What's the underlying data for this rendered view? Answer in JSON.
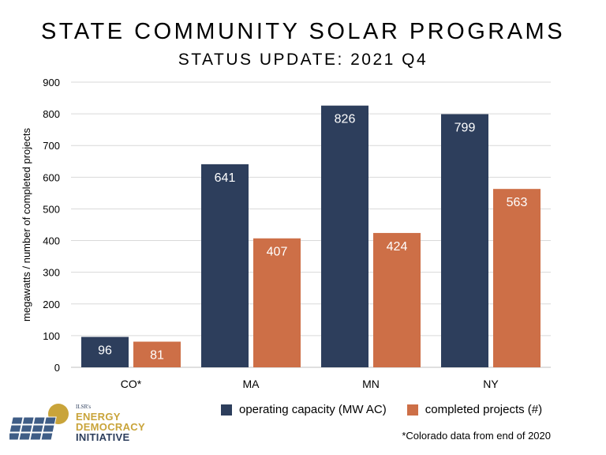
{
  "header": {
    "title": "STATE COMMUNITY SOLAR PROGRAMS",
    "subtitle": "STATUS UPDATE: 2021 Q4"
  },
  "chart_data": {
    "type": "bar",
    "title": "STATE COMMUNITY SOLAR PROGRAMS",
    "subtitle": "STATUS UPDATE: 2021 Q4",
    "categories": [
      "CO*",
      "MA",
      "MN",
      "NY"
    ],
    "series": [
      {
        "name": "operating capacity (MW AC)",
        "values": [
          96,
          641,
          826,
          799
        ],
        "color": "#2d3e5c"
      },
      {
        "name": "completed projects (#)",
        "values": [
          81,
          407,
          424,
          563
        ],
        "color": "#cd6f47"
      }
    ],
    "ylabel": "megawatts / number of completed projects",
    "xlabel": "",
    "ylim": [
      0,
      900
    ],
    "yticks": [
      0,
      100,
      200,
      300,
      400,
      500,
      600,
      700,
      800,
      900
    ],
    "grid": true,
    "legend": "bottom"
  },
  "footnote": "*Colorado data from end of 2020",
  "logo": {
    "ilsr": "ILSR's",
    "line1": "ENERGY",
    "line2": "DEMOCRACY",
    "line3": "INITIATIVE"
  }
}
